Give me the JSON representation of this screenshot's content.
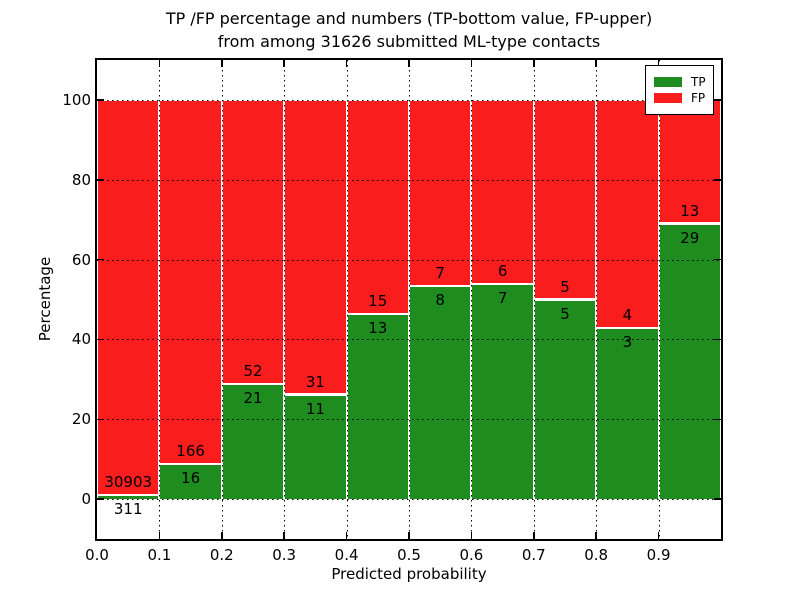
{
  "figure": {
    "title_line1": "TP /FP percentage and numbers (TP-bottom value, FP-upper)",
    "title_line2": "from among 31626 submitted ML-type contacts",
    "xlabel": "Predicted probability",
    "ylabel": "Percentage"
  },
  "legend": {
    "position": "upper right",
    "items": [
      {
        "label": "TP",
        "color": "#1e8c1e"
      },
      {
        "label": "FP",
        "color": "#fa1d1d"
      }
    ]
  },
  "chart_data": {
    "type": "bar",
    "stacked": true,
    "normalized_to_percent": true,
    "title": "TP /FP percentage and numbers (TP-bottom value, FP-upper) from among 31626 submitted ML-type contacts",
    "total_contacts": 31626,
    "xlabel": "Predicted probability",
    "ylabel": "Percentage",
    "xlim": [
      0.0,
      1.0
    ],
    "ylim": [
      -10,
      110
    ],
    "grid": "dotted",
    "legend_position": "upper right",
    "x_tick_labels": [
      "0.0",
      "0.1",
      "0.2",
      "0.3",
      "0.4",
      "0.5",
      "0.6",
      "0.7",
      "0.8",
      "0.9"
    ],
    "y_tick_values": [
      0,
      20,
      40,
      60,
      80,
      100
    ],
    "categories": [
      "0.0-0.1",
      "0.1-0.2",
      "0.2-0.3",
      "0.3-0.4",
      "0.4-0.5",
      "0.5-0.6",
      "0.6-0.7",
      "0.7-0.8",
      "0.8-0.9",
      "0.9-1.0"
    ],
    "series": [
      {
        "name": "TP",
        "color": "#1e8c1e",
        "values": [
          311,
          16,
          21,
          11,
          13,
          8,
          7,
          5,
          3,
          29
        ]
      },
      {
        "name": "FP",
        "color": "#fa1d1d",
        "values": [
          30903,
          166,
          52,
          31,
          15,
          7,
          6,
          5,
          4,
          13
        ]
      }
    ],
    "tp_percent_of_bin": [
      1.0,
      8.8,
      28.8,
      26.2,
      46.4,
      53.3,
      53.8,
      50.0,
      42.9,
      69.0
    ]
  }
}
